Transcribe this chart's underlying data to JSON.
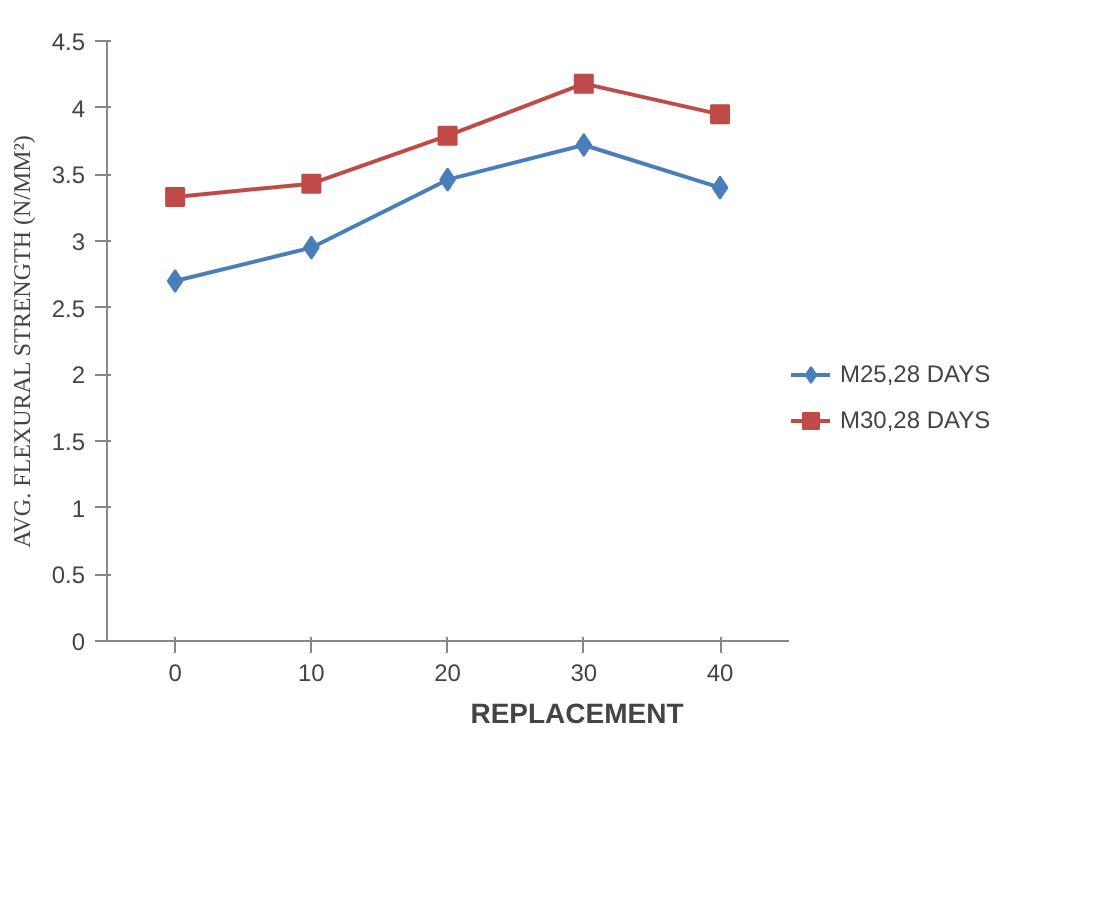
{
  "chart_data": {
    "type": "line",
    "xlabel": "REPLACEMENT",
    "ylabel": "AVG. FLEXURAL STRENGTH (N/MM²)",
    "categories": [
      "0",
      "10",
      "20",
      "30",
      "40"
    ],
    "series": [
      {
        "name": "M25,28 DAYS",
        "color": "#4a7ebb",
        "marker": "diamond",
        "values": [
          2.7,
          2.95,
          3.46,
          3.72,
          3.4
        ]
      },
      {
        "name": "M30,28 DAYS",
        "color": "#be4b48",
        "marker": "square",
        "values": [
          3.33,
          3.43,
          3.79,
          4.18,
          3.95
        ]
      }
    ],
    "ylim": [
      0,
      4.5
    ],
    "yticks": [
      0,
      0.5,
      1,
      1.5,
      2,
      2.5,
      3,
      3.5,
      4,
      4.5
    ],
    "grid": false,
    "legend": "right",
    "line_style": "solid"
  }
}
